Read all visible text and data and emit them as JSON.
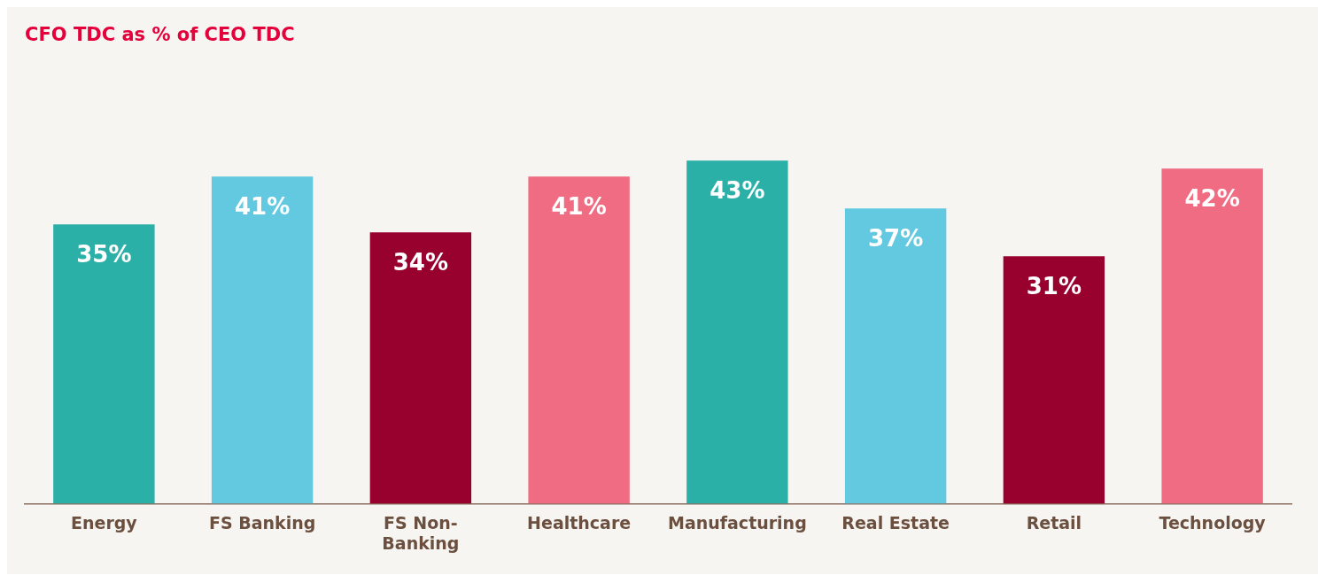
{
  "chart_data": {
    "type": "bar",
    "title": "CFO TDC as % of CEO TDC",
    "categories": [
      "Energy",
      "FS Banking",
      "FS Non-Banking",
      "Healthcare",
      "Manufacturing",
      "Real Estate",
      "Retail",
      "Technology"
    ],
    "values": [
      35,
      41,
      34,
      41,
      43,
      37,
      31,
      42
    ],
    "colors": [
      "#2bb0a8",
      "#62c9e1",
      "#98002e",
      "#f06c82",
      "#2bb0a8",
      "#62c9e1",
      "#98002e",
      "#f06c82"
    ],
    "value_labels": [
      "35%",
      "41%",
      "34%",
      "41%",
      "43%",
      "37%",
      "31%",
      "42%"
    ],
    "tick_labels": "x",
    "grid": false,
    "legend": false
  }
}
